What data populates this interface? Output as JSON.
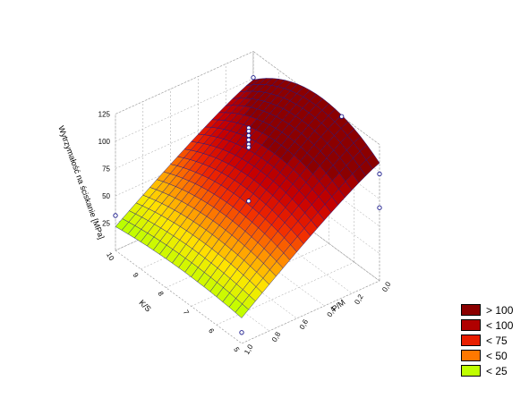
{
  "chart_data": {
    "type": "surface3d",
    "z_axis": {
      "label": "Wytrzymałość na ściskanie [MPa]",
      "ticks": [
        "25",
        "50",
        "75",
        "100",
        "125"
      ]
    },
    "x_axis": {
      "label": "K/S",
      "ticks": [
        "5",
        "6",
        "7",
        "8",
        "9",
        "10"
      ],
      "range": [
        5,
        10
      ]
    },
    "y_axis": {
      "label": "P/M",
      "ticks": [
        "0,0",
        "0,2",
        "0,4",
        "0,6",
        "0,8",
        "1,0"
      ],
      "range": [
        0,
        1
      ]
    },
    "z_range": [
      0,
      125
    ],
    "surface_samples": [
      {
        "ks": 10,
        "pm": 1.0,
        "z": 16
      },
      {
        "ks": 5,
        "pm": 1.0,
        "z": 25
      },
      {
        "ks": 10,
        "pm": 0.0,
        "z": 95
      },
      {
        "ks": 5,
        "pm": 0.0,
        "z": 104
      },
      {
        "ks": 7.5,
        "pm": 0.0,
        "z": 127
      },
      {
        "ks": 7.5,
        "pm": 0.5,
        "z": 95
      }
    ],
    "points": [
      {
        "ks": 10,
        "pm": 0.0,
        "z": 101
      },
      {
        "ks": 8,
        "pm": 0.4,
        "z": 112
      },
      {
        "ks": 8,
        "pm": 0.4,
        "z": 109
      },
      {
        "ks": 8,
        "pm": 0.4,
        "z": 105
      },
      {
        "ks": 8,
        "pm": 0.4,
        "z": 101
      },
      {
        "ks": 8,
        "pm": 0.4,
        "z": 97
      },
      {
        "ks": 8,
        "pm": 0.4,
        "z": 94
      },
      {
        "ks": 8,
        "pm": 0.4,
        "z": 45
      },
      {
        "ks": 5,
        "pm": 0.0,
        "z": 98
      },
      {
        "ks": 5,
        "pm": 0.0,
        "z": 67
      },
      {
        "ks": 6.5,
        "pm": 0.0,
        "z": 125
      },
      {
        "ks": 10,
        "pm": 1.0,
        "z": 32
      },
      {
        "ks": 5,
        "pm": 1.0,
        "z": 10
      }
    ],
    "legend": [
      {
        "label": "> 100",
        "color": "#8b0000"
      },
      {
        "label": "< 100",
        "color": "#b00000"
      },
      {
        "label": "< 75",
        "color": "#e81e00"
      },
      {
        "label": "< 50",
        "color": "#ff7800"
      },
      {
        "label": "< 25",
        "color": "#bfff00"
      }
    ],
    "legend_position": "bottom-right",
    "grid": true
  }
}
